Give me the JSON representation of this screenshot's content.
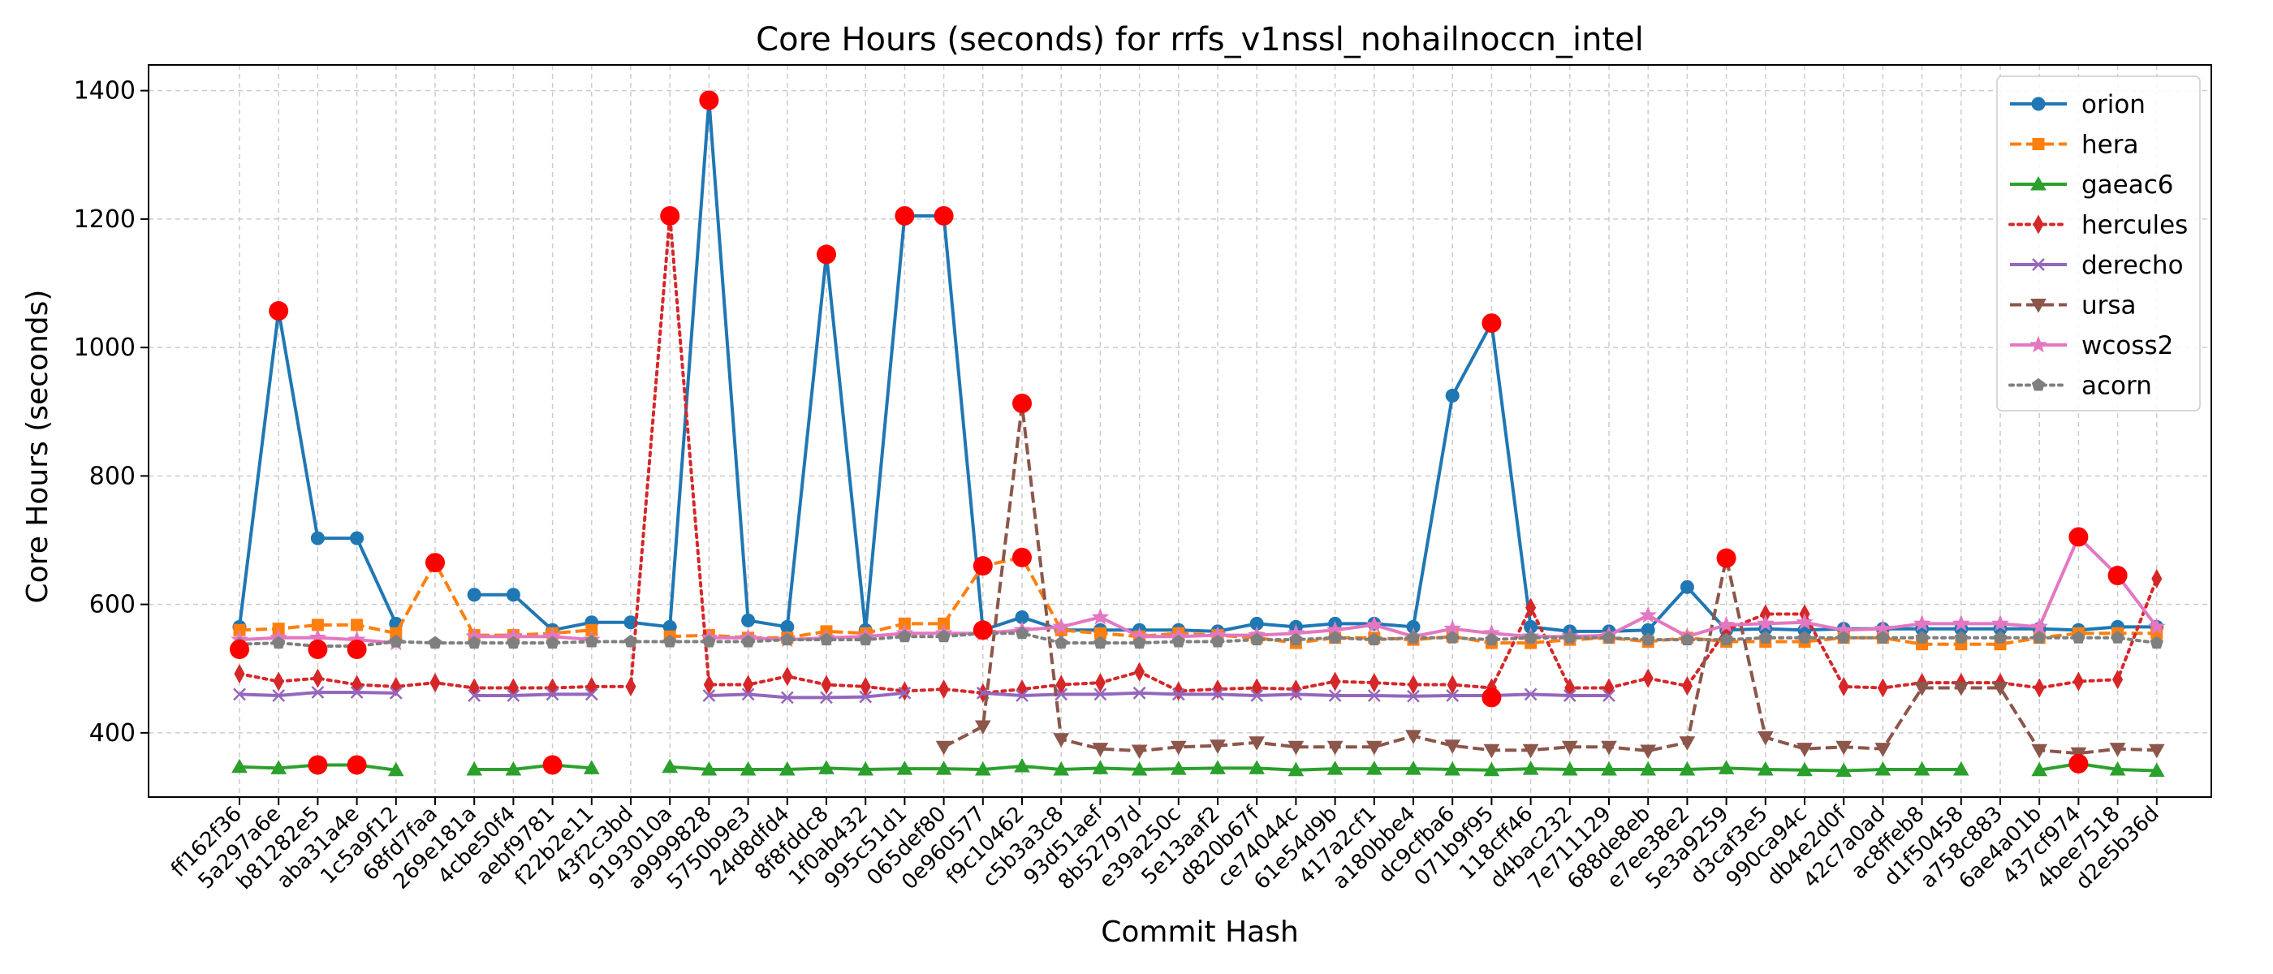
{
  "chart_data": {
    "type": "line",
    "title": "Core Hours (seconds) for rrfs_v1nssl_nohailnoccn_intel",
    "xlabel": "Commit Hash",
    "ylabel": "Core Hours (seconds)",
    "ylim": [
      300,
      1440
    ],
    "yticks": [
      400,
      600,
      800,
      1000,
      1200,
      1400
    ],
    "grid": true,
    "legend_position": "top-right",
    "categories": [
      "ff162f36",
      "5a297a6e",
      "b81282e5",
      "aba31a4e",
      "1c5a9f12",
      "68fd7faa",
      "269e181a",
      "4cbe50f4",
      "aebf9781",
      "f22b2e11",
      "43f2c3bd",
      "9193010a",
      "a9999828",
      "5750b9e3",
      "24d8dfd4",
      "8f8fddc8",
      "1f0ab432",
      "995c51d1",
      "065def80",
      "0e960577",
      "f9c10462",
      "c5b3a3c8",
      "93d51aef",
      "8b52797d",
      "e39a250c",
      "5e13aaf2",
      "d820b67f",
      "ce74044c",
      "61e54d9b",
      "417a2cf1",
      "a180bbe4",
      "dc9cfba6",
      "071b9f95",
      "118cff46",
      "d4bac232",
      "7e711129",
      "688de8eb",
      "e7ee38e2",
      "5e3a9259",
      "d3caf3e5",
      "990ca94c",
      "db4e2d0f",
      "42c7a0ad",
      "ac8ffeb8",
      "d1f50458",
      "a758c883",
      "6ae4a01b",
      "437cf974",
      "4bee7518",
      "d2e5b36d"
    ],
    "series": [
      {
        "name": "orion",
        "color": "#1f77b4",
        "dash": "solid",
        "marker": "circle",
        "values": [
          565,
          1057,
          703,
          703,
          570,
          null,
          615,
          615,
          560,
          572,
          572,
          565,
          1385,
          575,
          565,
          1145,
          560,
          1205,
          1205,
          560,
          580,
          560,
          560,
          560,
          560,
          558,
          570,
          565,
          570,
          570,
          565,
          925,
          1038,
          565,
          558,
          558,
          560,
          627,
          560,
          562,
          560,
          562,
          562,
          562,
          562,
          562,
          562,
          560,
          565,
          565
        ]
      },
      {
        "name": "hera",
        "color": "#ff7f0e",
        "dash": "dashed",
        "marker": "square",
        "values": [
          560,
          562,
          568,
          568,
          555,
          665,
          552,
          552,
          555,
          560,
          null,
          550,
          552,
          548,
          548,
          558,
          555,
          570,
          570,
          660,
          673,
          560,
          555,
          550,
          555,
          552,
          548,
          540,
          548,
          548,
          545,
          550,
          540,
          540,
          545,
          548,
          542,
          548,
          542,
          542,
          542,
          548,
          548,
          538,
          538,
          538,
          548,
          555,
          555,
          555
        ]
      },
      {
        "name": "gaeac6",
        "color": "#2ca02c",
        "dash": "solid",
        "marker": "triangle-up",
        "values": [
          347,
          345,
          350,
          350,
          342,
          null,
          343,
          343,
          350,
          345,
          null,
          347,
          343,
          343,
          343,
          345,
          343,
          344,
          344,
          343,
          348,
          343,
          345,
          343,
          344,
          345,
          345,
          342,
          344,
          344,
          344,
          343,
          342,
          344,
          343,
          343,
          343,
          343,
          345,
          343,
          342,
          341,
          343,
          343,
          343,
          null,
          342,
          352,
          343,
          341
        ]
      },
      {
        "name": "hercules",
        "color": "#d62728",
        "dash": "dotted",
        "marker": "thin-diamond",
        "values": [
          492,
          480,
          485,
          475,
          472,
          478,
          470,
          470,
          470,
          472,
          472,
          1205,
          475,
          475,
          488,
          475,
          472,
          465,
          468,
          462,
          468,
          475,
          478,
          495,
          465,
          468,
          470,
          468,
          480,
          478,
          475,
          475,
          470,
          595,
          470,
          470,
          485,
          473,
          560,
          585,
          585,
          472,
          470,
          478,
          478,
          478,
          470,
          480,
          483,
          640
        ]
      },
      {
        "name": "derecho",
        "color": "#9467bd",
        "dash": "solid",
        "marker": "x",
        "values": [
          460,
          458,
          463,
          463,
          462,
          null,
          458,
          458,
          460,
          460,
          null,
          null,
          458,
          460,
          455,
          455,
          456,
          462,
          null,
          462,
          458,
          460,
          460,
          462,
          460,
          460,
          458,
          460,
          458,
          458,
          457,
          458,
          458,
          460,
          458,
          458,
          null,
          null,
          null,
          null,
          null,
          null,
          null,
          null,
          null,
          null,
          null,
          null,
          null,
          null
        ]
      },
      {
        "name": "ursa",
        "color": "#8c564b",
        "dash": "dashed",
        "marker": "triangle-down",
        "values": [
          null,
          null,
          null,
          null,
          null,
          null,
          null,
          null,
          null,
          null,
          null,
          null,
          null,
          null,
          null,
          null,
          null,
          null,
          378,
          410,
          910,
          390,
          375,
          372,
          378,
          380,
          385,
          378,
          378,
          378,
          395,
          380,
          373,
          373,
          378,
          378,
          372,
          385,
          672,
          393,
          375,
          378,
          375,
          470,
          470,
          470,
          373,
          368,
          375,
          373
        ]
      },
      {
        "name": "wcoss2",
        "color": "#e377c2",
        "dash": "solid",
        "marker": "star",
        "values": [
          545,
          548,
          548,
          545,
          540,
          null,
          550,
          550,
          550,
          545,
          null,
          null,
          548,
          548,
          545,
          548,
          550,
          555,
          555,
          555,
          560,
          565,
          580,
          550,
          550,
          552,
          552,
          555,
          560,
          568,
          550,
          562,
          555,
          550,
          550,
          552,
          583,
          550,
          568,
          570,
          572,
          560,
          562,
          570,
          570,
          570,
          565,
          705,
          645,
          565
        ]
      },
      {
        "name": "acorn",
        "color": "#7f7f7f",
        "dash": "dotted",
        "marker": "pentagon",
        "values": [
          538,
          540,
          535,
          535,
          542,
          540,
          540,
          540,
          540,
          542,
          542,
          542,
          542,
          542,
          545,
          545,
          545,
          550,
          550,
          555,
          555,
          540,
          540,
          540,
          542,
          542,
          545,
          545,
          548,
          545,
          548,
          548,
          545,
          548,
          548,
          548,
          545,
          545,
          545,
          548,
          548,
          548,
          548,
          548,
          548,
          548,
          548,
          548,
          548,
          540
        ]
      }
    ],
    "highlights": [
      {
        "x": "ff162f36",
        "y": 530
      },
      {
        "x": "5a297a6e",
        "y": 1057
      },
      {
        "x": "b81282e5",
        "y": 530
      },
      {
        "x": "aba31a4e",
        "y": 530
      },
      {
        "x": "b81282e5",
        "y": 350
      },
      {
        "x": "aba31a4e",
        "y": 350
      },
      {
        "x": "68fd7faa",
        "y": 665
      },
      {
        "x": "aebf9781",
        "y": 350
      },
      {
        "x": "9193010a",
        "y": 1205
      },
      {
        "x": "a9999828",
        "y": 1385
      },
      {
        "x": "8f8fddc8",
        "y": 1145
      },
      {
        "x": "995c51d1",
        "y": 1205
      },
      {
        "x": "065def80",
        "y": 1205
      },
      {
        "x": "0e960577",
        "y": 660
      },
      {
        "x": "0e960577",
        "y": 560
      },
      {
        "x": "f9c10462",
        "y": 673
      },
      {
        "x": "f9c10462",
        "y": 913
      },
      {
        "x": "071b9f95",
        "y": 1038
      },
      {
        "x": "071b9f95",
        "y": 455
      },
      {
        "x": "5e3a9259",
        "y": 672
      },
      {
        "x": "437cf974",
        "y": 705
      },
      {
        "x": "437cf974",
        "y": 352
      },
      {
        "x": "4bee7518",
        "y": 645
      }
    ],
    "highlight_color": "#ff0000"
  }
}
